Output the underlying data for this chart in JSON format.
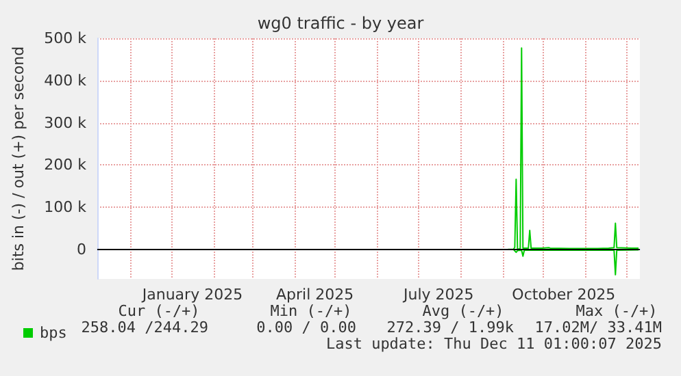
{
  "chart_data": {
    "type": "line",
    "title": "wg0 traffic - by year",
    "ylabel": "bits in (-) / out (+) per second",
    "xlim": [
      "2024-11-07",
      "2025-12-11"
    ],
    "xticks": [
      {
        "value": "2024-12-01",
        "label": null
      },
      {
        "value": "2025-01-01",
        "label": null
      },
      {
        "value": "2025-02-01",
        "label": null
      },
      {
        "value": "2025-03-01",
        "label": null
      },
      {
        "value": "2025-04-01",
        "label": null
      },
      {
        "value": "2025-05-01",
        "label": null
      },
      {
        "value": "2025-06-01",
        "label": null
      },
      {
        "value": "2025-07-01",
        "label": null
      },
      {
        "value": "2025-08-01",
        "label": null
      },
      {
        "value": "2025-09-01",
        "label": null
      },
      {
        "value": "2025-10-01",
        "label": null
      },
      {
        "value": "2025-11-01",
        "label": null
      },
      {
        "value": "2025-12-01",
        "label": null
      },
      {
        "value": "2025-01-16",
        "label": "January 2025"
      },
      {
        "value": "2025-04-16",
        "label": "April 2025"
      },
      {
        "value": "2025-07-16",
        "label": "July 2025"
      },
      {
        "value": "2025-10-16",
        "label": "October 2025"
      }
    ],
    "ylim": [
      -70000,
      500000
    ],
    "yticks": [
      {
        "value": 0,
        "label": "0"
      },
      {
        "value": 100000,
        "label": "100 k"
      },
      {
        "value": 200000,
        "label": "200 k"
      },
      {
        "value": 300000,
        "label": "300 k"
      },
      {
        "value": 400000,
        "label": "400 k"
      },
      {
        "value": 500000,
        "label": "500 k"
      }
    ],
    "grid": true,
    "legend": "bottom left",
    "ref_lines": [
      {
        "axis": "y",
        "value": 0,
        "label": null,
        "color": "#000000"
      }
    ],
    "series": [
      {
        "name": "bps",
        "color": "#00cc00",
        "x": [
          "2025-09-05",
          "2025-09-09",
          "2025-09-10",
          "2025-09-11",
          "2025-09-12",
          "2025-09-13",
          "2025-09-14",
          "2025-09-15",
          "2025-09-16",
          "2025-09-18",
          "2025-09-20",
          "2025-09-21",
          "2025-09-22",
          "2025-09-30",
          "2025-10-05",
          "2025-10-06",
          "2025-10-20",
          "2025-11-10",
          "2025-11-18",
          "2025-11-22",
          "2025-11-23",
          "2025-11-24",
          "2025-12-05",
          "2025-12-10"
        ],
        "values": [
          0,
          0,
          5000,
          166000,
          2000,
          0,
          3000,
          477000,
          3000,
          3000,
          3000,
          45000,
          3000,
          3000,
          4000,
          3000,
          2000,
          2000,
          3000,
          4000,
          62000,
          4000,
          3000,
          3000
        ]
      },
      {
        "color": "#00cc00",
        "x": [
          "2025-09-09",
          "2025-09-11",
          "2025-09-12",
          "2025-09-15",
          "2025-09-16",
          "2025-09-17",
          "2025-11-22",
          "2025-11-23",
          "2025-11-24",
          "2025-12-10"
        ],
        "values": [
          0,
          -7000,
          -3000,
          -2000,
          -16000,
          -2000,
          -2000,
          -60000,
          -2000,
          -1000
        ]
      }
    ],
    "annotations": [
      "Cur (-/+)",
      "Min (-/+)",
      "Avg (-/+)",
      "Max (-/+)",
      "258.04 /244.29",
      "0.00 / 0.00",
      "272.39 / 1.99k",
      "17.02M/ 33.41M",
      "Last update: Thu Dec 11 01:00:07 2025"
    ]
  }
}
